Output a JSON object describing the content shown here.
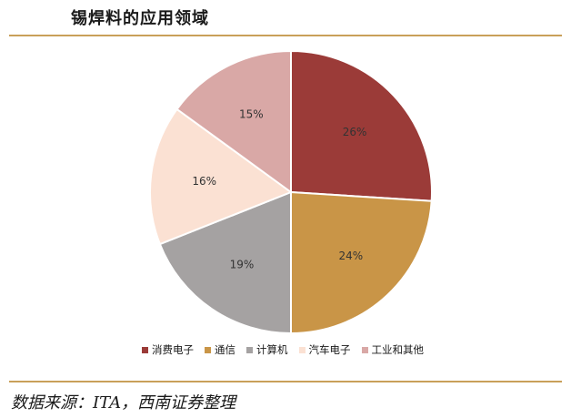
{
  "title": "锡焊料的应用领域",
  "source": "数据来源：ITA，西南证券整理",
  "chart_data": {
    "type": "pie",
    "slices": [
      {
        "name": "消费电子",
        "value": 26,
        "label": "26%",
        "color": "#9b3b38"
      },
      {
        "name": "通信",
        "value": 24,
        "label": "24%",
        "color": "#c99547"
      },
      {
        "name": "计算机",
        "value": 19,
        "label": "19%",
        "color": "#a5a2a2"
      },
      {
        "name": "汽车电子",
        "value": 16,
        "label": "16%",
        "color": "#fbe1d3"
      },
      {
        "name": "工业和其他",
        "value": 15,
        "label": "15%",
        "color": "#d9a8a6"
      }
    ],
    "legend_position": "bottom"
  }
}
